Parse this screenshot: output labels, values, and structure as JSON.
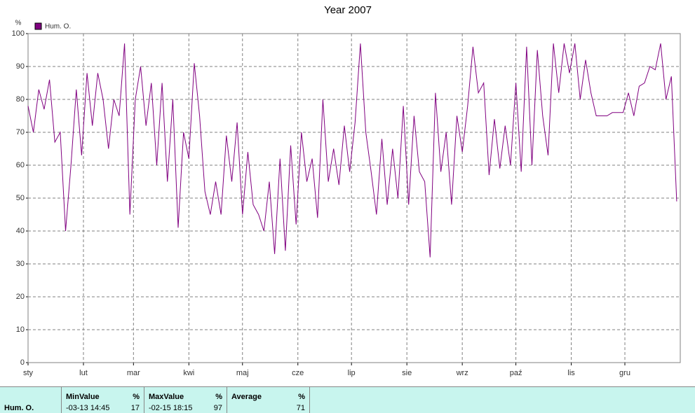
{
  "chart_data": {
    "type": "line",
    "title": "Year 2007",
    "y_label": "%",
    "x": [
      0,
      3,
      6,
      9,
      12,
      15,
      18,
      21,
      24,
      27,
      30,
      33,
      36,
      39,
      42,
      45,
      48,
      51,
      54,
      57,
      60,
      63,
      66,
      69,
      72,
      75,
      78,
      81,
      84,
      87,
      90,
      93,
      96,
      99,
      102,
      105,
      108,
      111,
      114,
      117,
      120,
      123,
      126,
      129,
      132,
      135,
      138,
      141,
      144,
      147,
      150,
      153,
      156,
      159,
      162,
      165,
      168,
      171,
      174,
      177,
      180,
      183,
      186,
      189,
      192,
      195,
      198,
      201,
      204,
      207,
      210,
      213,
      216,
      219,
      222,
      225,
      228,
      231,
      234,
      237,
      240,
      243,
      246,
      249,
      252,
      255,
      258,
      261,
      264,
      267,
      270,
      273,
      276,
      279,
      282,
      285,
      288,
      291,
      294,
      297,
      300,
      303,
      306,
      309,
      312,
      315,
      318,
      321,
      324,
      327,
      330,
      333,
      336,
      339,
      342,
      345,
      348,
      351,
      354,
      357,
      360,
      363
    ],
    "series": [
      {
        "name": "Hum. O.",
        "color": "#800080",
        "values": [
          78,
          70,
          83,
          77,
          86,
          67,
          70,
          40,
          60,
          83,
          63,
          88,
          72,
          88,
          80,
          65,
          80,
          75,
          97,
          45,
          80,
          90,
          72,
          85,
          60,
          85,
          55,
          80,
          41,
          70,
          62,
          91,
          75,
          52,
          45,
          55,
          45,
          69,
          55,
          73,
          45,
          64,
          48,
          45,
          40,
          55,
          33,
          62,
          34,
          66,
          42,
          70,
          55,
          62,
          44,
          80,
          55,
          65,
          54,
          72,
          58,
          73,
          97,
          70,
          58,
          45,
          68,
          48,
          65,
          50,
          78,
          48,
          75,
          58,
          55,
          32,
          82,
          58,
          70,
          48,
          75,
          64,
          78,
          96,
          82,
          85,
          57,
          74,
          59,
          72,
          60,
          85,
          58,
          96,
          60,
          95,
          75,
          63,
          97,
          82,
          97,
          88,
          97,
          80,
          92,
          82,
          75,
          75,
          75,
          76,
          76,
          76,
          82,
          75,
          84,
          85,
          90,
          89,
          97,
          80,
          87,
          49
        ]
      }
    ],
    "xlim": [
      0,
      365
    ],
    "xticks": [
      {
        "value": 0,
        "label": "sty"
      },
      {
        "value": 31,
        "label": "lut"
      },
      {
        "value": 59,
        "label": "mar"
      },
      {
        "value": 90,
        "label": "kwi"
      },
      {
        "value": 120,
        "label": "maj"
      },
      {
        "value": 151,
        "label": "cze"
      },
      {
        "value": 181,
        "label": "lip"
      },
      {
        "value": 212,
        "label": "sie"
      },
      {
        "value": 243,
        "label": "wrz"
      },
      {
        "value": 273,
        "label": "paź"
      },
      {
        "value": 304,
        "label": "lis"
      },
      {
        "value": 334,
        "label": "gru"
      }
    ],
    "ylim": [
      0,
      100
    ],
    "yticks": [
      0,
      10,
      20,
      30,
      40,
      50,
      60,
      70,
      80,
      90,
      100
    ],
    "grid": true
  },
  "stats_table": {
    "row_label": "Hum. O.",
    "columns": [
      {
        "header": "MinValue",
        "unit": "%",
        "time": "-03-13 14:45",
        "value": "17"
      },
      {
        "header": "MaxValue",
        "unit": "%",
        "time": "-02-15 18:15",
        "value": "97"
      },
      {
        "header": "Average",
        "unit": "%",
        "value": "71"
      }
    ]
  }
}
